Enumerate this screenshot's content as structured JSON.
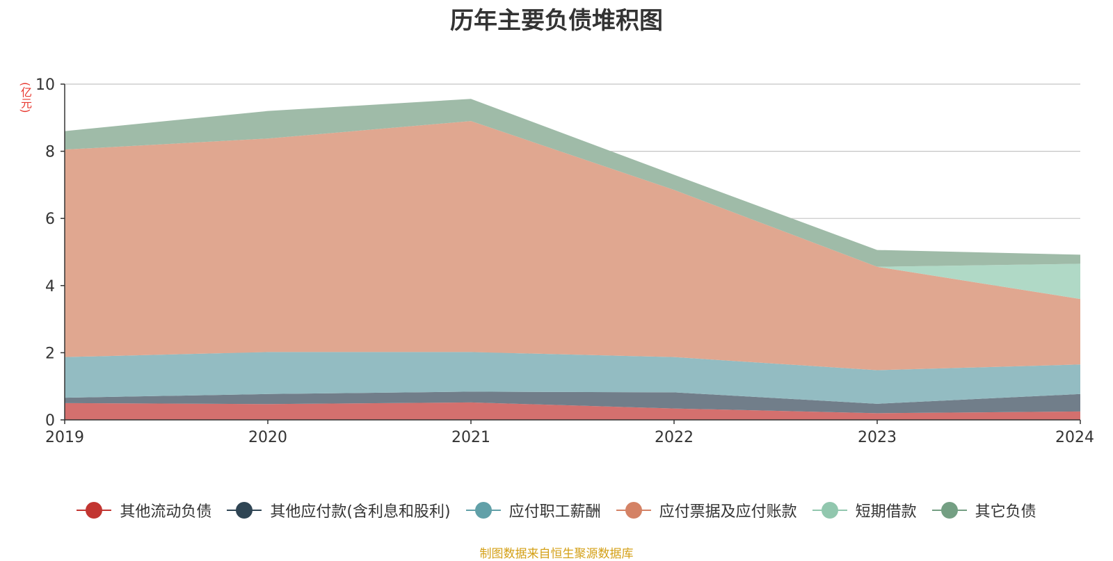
{
  "chart_data": {
    "type": "area",
    "stacked": true,
    "title": "历年主要负债堆积图",
    "ylabel": "(亿元)",
    "x": [
      "2019",
      "2020",
      "2021",
      "2022",
      "2023",
      "2024"
    ],
    "ylim": [
      0,
      10
    ],
    "yticks": [
      "0",
      "2",
      "4",
      "6",
      "8",
      "10"
    ],
    "grid": true,
    "legend_position": "bottom",
    "series": [
      {
        "name": "其他流动负债",
        "color": "#c23531",
        "fill": "#d4706e",
        "values": [
          0.5,
          0.47,
          0.52,
          0.34,
          0.2,
          0.25
        ]
      },
      {
        "name": "其他应付款(含利息和股利)",
        "color": "#2f4554",
        "fill": "#717e8a",
        "values": [
          0.16,
          0.3,
          0.32,
          0.48,
          0.28,
          0.52
        ]
      },
      {
        "name": "应付职工薪酬",
        "color": "#61a0a8",
        "fill": "#93bcc2",
        "values": [
          1.21,
          1.25,
          1.18,
          1.05,
          1.0,
          0.88
        ]
      },
      {
        "name": "应付票据及应付账款",
        "color": "#d48265",
        "fill": "#e0a790",
        "values": [
          6.18,
          6.36,
          6.88,
          4.98,
          3.08,
          1.95
        ]
      },
      {
        "name": "短期借款",
        "color": "#91c7ae",
        "fill": "#b0d9c6",
        "values": [
          0.0,
          0.0,
          0.0,
          0.0,
          0.0,
          1.05
        ]
      },
      {
        "name": "其它负债",
        "color": "#749f83",
        "fill": "#9fbba8",
        "values": [
          0.55,
          0.82,
          0.66,
          0.45,
          0.5,
          0.27
        ]
      }
    ]
  },
  "source_note": "制图数据来自恒生聚源数据库"
}
